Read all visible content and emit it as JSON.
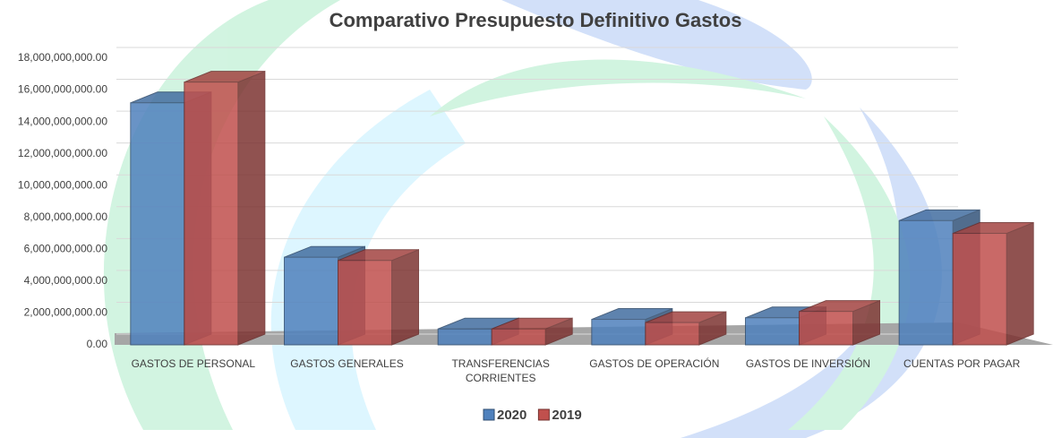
{
  "chart_data": {
    "type": "bar3d",
    "title": "Comparativo Presupuesto Definitivo Gastos",
    "categories": [
      "GASTOS DE PERSONAL",
      "GASTOS GENERALES",
      "TRANSFERENCIAS CORRIENTES",
      "GASTOS DE OPERACIÓN",
      "GASTOS DE INVERSIÓN",
      "CUENTAS POR PAGAR"
    ],
    "series": [
      {
        "name": "2020",
        "color": "#4f81bd",
        "values": [
          15200000000,
          5500000000,
          1000000000,
          1600000000,
          1700000000,
          7800000000
        ]
      },
      {
        "name": "2019",
        "color": "#c0504d",
        "values": [
          16500000000,
          5300000000,
          1000000000,
          1400000000,
          2100000000,
          7000000000
        ]
      }
    ],
    "ylim": [
      0,
      18000000000
    ],
    "yticks": [
      {
        "value": 0,
        "label": "0.00"
      },
      {
        "value": 2000000000,
        "label": "2,000,000,000.00"
      },
      {
        "value": 4000000000,
        "label": "4,000,000,000.00"
      },
      {
        "value": 6000000000,
        "label": "6,000,000,000.00"
      },
      {
        "value": 8000000000,
        "label": "8,000,000,000.00"
      },
      {
        "value": 10000000000,
        "label": "10,000,000,000.00"
      },
      {
        "value": 12000000000,
        "label": "12,000,000,000.00"
      },
      {
        "value": 14000000000,
        "label": "14,000,000,000.00"
      },
      {
        "value": 16000000000,
        "label": "16,000,000,000.00"
      },
      {
        "value": 18000000000,
        "label": "18,000,000,000.00"
      }
    ],
    "grid": true,
    "legend": "bottom"
  }
}
